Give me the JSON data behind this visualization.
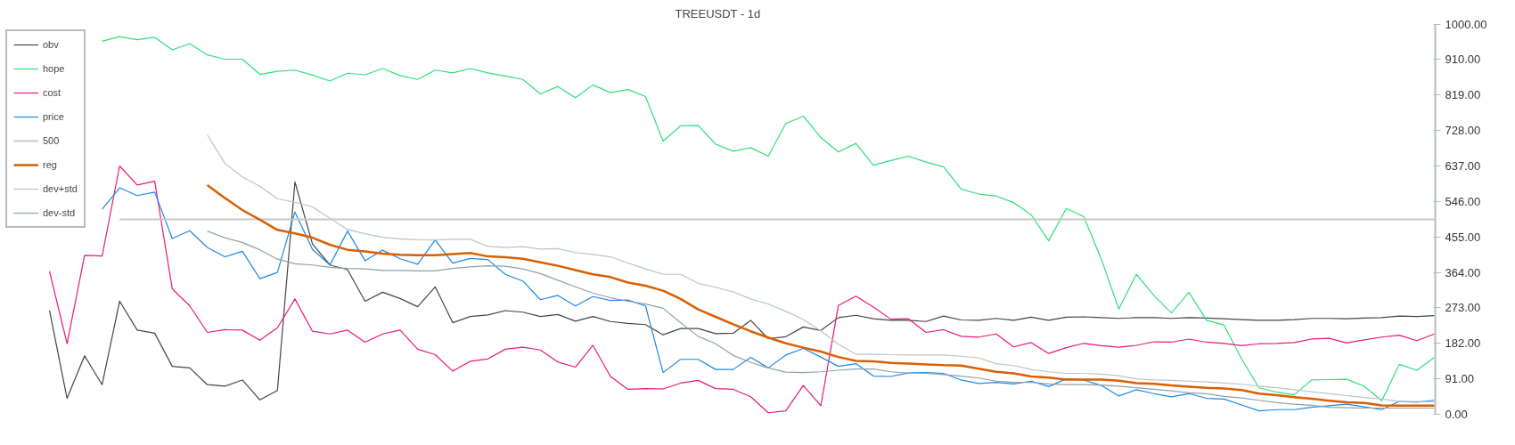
{
  "chart_data": {
    "type": "line",
    "title": "TREEUSDT - 1d",
    "categories": [
      null,
      null,
      null,
      null,
      null,
      null,
      null,
      null,
      null,
      null,
      null,
      null,
      null,
      null,
      null,
      null,
      null,
      null,
      null,
      null,
      null,
      null,
      null,
      null,
      null,
      null,
      null,
      null,
      null,
      null,
      null,
      null,
      null,
      null,
      null,
      null,
      null,
      null,
      null,
      null,
      null,
      null,
      null,
      null,
      null,
      null,
      null,
      null,
      null,
      null,
      null,
      null,
      null,
      null,
      null,
      null,
      null,
      null,
      null,
      null,
      null,
      null,
      null,
      null,
      null,
      null,
      null,
      null,
      null,
      null,
      null,
      null,
      null,
      null,
      null,
      null,
      null,
      null,
      null,
      null,
      null,
      null
    ],
    "series": [
      {
        "name": "obv",
        "color": "#444444",
        "values": [
          null,
          null,
          266,
          41,
          150,
          76,
          290,
          216,
          208,
          123,
          119,
          76,
          72,
          88,
          37,
          61,
          596,
          437,
          383,
          371,
          290,
          313,
          297,
          276,
          327,
          235,
          251,
          255,
          266,
          262,
          251,
          256,
          239,
          251,
          238,
          233,
          230,
          204,
          220,
          220,
          207,
          208,
          241,
          194,
          199,
          224,
          215,
          248,
          254,
          245,
          241,
          241,
          238,
          252,
          242,
          241,
          246,
          241,
          249,
          241,
          249,
          250,
          248,
          246,
          248,
          248,
          246,
          248,
          247,
          245,
          243,
          241,
          241,
          243,
          246,
          246,
          245,
          247,
          248,
          252,
          251,
          253
        ]
      },
      {
        "name": "hope",
        "color": "#2ee07a",
        "values": [
          null,
          null,
          null,
          null,
          null,
          957,
          969,
          961,
          967,
          935,
          951,
          922,
          911,
          911,
          872,
          880,
          883,
          870,
          855,
          875,
          871,
          887,
          869,
          859,
          883,
          876,
          887,
          876,
          868,
          859,
          822,
          841,
          812,
          845,
          825,
          833,
          815,
          701,
          740,
          741,
          693,
          675,
          684,
          662,
          746,
          765,
          710,
          673,
          695,
          639,
          651,
          662,
          647,
          635,
          578,
          565,
          560,
          543,
          512,
          445,
          528,
          507,
          398,
          270,
          359,
          305,
          260,
          313,
          241,
          229,
          142,
          68,
          57,
          50,
          88,
          89,
          90,
          72,
          35,
          128,
          113,
          146
        ]
      },
      {
        "name": "cost",
        "color": "#e8197a",
        "values": [
          null,
          null,
          367,
          181,
          408,
          406,
          637,
          588,
          598,
          322,
          278,
          210,
          217,
          216,
          190,
          222,
          296,
          213,
          206,
          216,
          185,
          206,
          216,
          167,
          153,
          111,
          136,
          142,
          167,
          172,
          165,
          134,
          121,
          177,
          97,
          64,
          66,
          65,
          80,
          87,
          66,
          64,
          45,
          4,
          9,
          74,
          22,
          279,
          303,
          275,
          244,
          245,
          210,
          217,
          200,
          198,
          206,
          173,
          184,
          156,
          171,
          182,
          176,
          172,
          177,
          186,
          185,
          193,
          185,
          182,
          176,
          181,
          182,
          184,
          193,
          195,
          183,
          191,
          198,
          203,
          189,
          206
        ]
      },
      {
        "name": "price",
        "color": "#1e88e5",
        "values": [
          null,
          null,
          null,
          null,
          null,
          526,
          581,
          561,
          570,
          451,
          471,
          428,
          404,
          418,
          348,
          364,
          519,
          423,
          383,
          470,
          394,
          421,
          399,
          385,
          447,
          388,
          400,
          397,
          359,
          342,
          294,
          305,
          278,
          302,
          292,
          293,
          278,
          107,
          141,
          141,
          115,
          115,
          146,
          119,
          152,
          169,
          147,
          123,
          130,
          98,
          97,
          106,
          107,
          105,
          88,
          79,
          82,
          78,
          85,
          71,
          91,
          88,
          74,
          47,
          63,
          53,
          45,
          53,
          41,
          39,
          24,
          9,
          12,
          12,
          18,
          22,
          26,
          19,
          12,
          33,
          31,
          36
        ]
      },
      {
        "name": "500",
        "color": "#c8c8c8",
        "values": [
          null,
          null,
          null,
          null,
          null,
          null,
          500,
          500,
          500,
          500,
          500,
          500,
          500,
          500,
          500,
          500,
          500,
          500,
          500,
          500,
          500,
          500,
          500,
          500,
          500,
          500,
          500,
          500,
          500,
          500,
          500,
          500,
          500,
          500,
          500,
          500,
          500,
          500,
          500,
          500,
          500,
          500,
          500,
          500,
          500,
          500,
          500,
          500,
          500,
          500,
          500,
          500,
          500,
          500,
          500,
          500,
          500,
          500,
          500,
          500,
          500,
          500,
          500,
          500,
          500,
          500,
          500,
          500,
          500,
          500,
          500,
          500,
          500,
          500,
          500,
          500,
          500,
          500,
          500,
          500,
          500,
          500
        ]
      },
      {
        "name": "reg",
        "color": "#d95f02",
        "values": [
          null,
          null,
          null,
          null,
          null,
          null,
          null,
          null,
          null,
          null,
          null,
          588,
          555,
          524,
          499,
          473,
          464,
          453,
          435,
          422,
          418,
          412,
          409,
          408,
          408,
          411,
          414,
          405,
          403,
          399,
          390,
          381,
          370,
          359,
          352,
          338,
          330,
          317,
          296,
          269,
          250,
          231,
          213,
          197,
          182,
          171,
          161,
          147,
          137,
          136,
          132,
          130,
          128,
          126,
          125,
          117,
          109,
          105,
          97,
          94,
          89,
          89,
          89,
          86,
          80,
          78,
          74,
          71,
          68,
          66,
          62,
          53,
          49,
          44,
          40,
          35,
          31,
          29,
          23,
          22,
          22,
          22
        ]
      },
      {
        "name": "dev+std",
        "color": "#b8c4ca",
        "values": [
          null,
          null,
          null,
          null,
          null,
          null,
          null,
          null,
          null,
          null,
          null,
          717,
          644,
          609,
          585,
          553,
          544,
          532,
          503,
          474,
          463,
          454,
          450,
          448,
          447,
          449,
          449,
          431,
          428,
          430,
          424,
          425,
          415,
          410,
          404,
          388,
          373,
          359,
          359,
          336,
          326,
          314,
          296,
          283,
          264,
          243,
          214,
          180,
          154,
          154,
          153,
          152,
          152,
          152,
          149,
          145,
          130,
          125,
          115,
          109,
          105,
          105,
          103,
          99,
          91,
          88,
          87,
          85,
          83,
          80,
          77,
          72,
          68,
          63,
          58,
          53,
          48,
          43,
          39,
          33,
          33,
          32
        ]
      },
      {
        "name": "dev-std",
        "color": "#90a0a8",
        "values": [
          null,
          null,
          null,
          null,
          null,
          null,
          null,
          null,
          null,
          null,
          null,
          470,
          453,
          441,
          422,
          398,
          386,
          383,
          377,
          374,
          373,
          369,
          369,
          368,
          368,
          374,
          378,
          381,
          380,
          373,
          361,
          344,
          327,
          311,
          299,
          290,
          283,
          272,
          235,
          200,
          181,
          151,
          133,
          119,
          108,
          107,
          109,
          113,
          116,
          116,
          109,
          106,
          105,
          102,
          98,
          93,
          85,
          82,
          82,
          78,
          76,
          76,
          75,
          72,
          68,
          64,
          60,
          55,
          53,
          46,
          42,
          36,
          30,
          26,
          23,
          18,
          17,
          16,
          16,
          16,
          16,
          16
        ]
      }
    ],
    "ylim": [
      0,
      1000
    ],
    "yticks": [
      {
        "value": 0,
        "label": "0.00"
      },
      {
        "value": 91,
        "label": "91.00"
      },
      {
        "value": 182,
        "label": "182.00"
      },
      {
        "value": 273,
        "label": "273.00"
      },
      {
        "value": 364,
        "label": "364.00"
      },
      {
        "value": 455,
        "label": "455.00"
      },
      {
        "value": 546,
        "label": "546.00"
      },
      {
        "value": 637,
        "label": "637.00"
      },
      {
        "value": 728,
        "label": "728.00"
      },
      {
        "value": 819,
        "label": "819.00"
      },
      {
        "value": 910,
        "label": "910.00"
      },
      {
        "value": 1000,
        "label": "1000.00"
      }
    ],
    "tick_labels": "y",
    "grid": false,
    "legend": "top left"
  }
}
